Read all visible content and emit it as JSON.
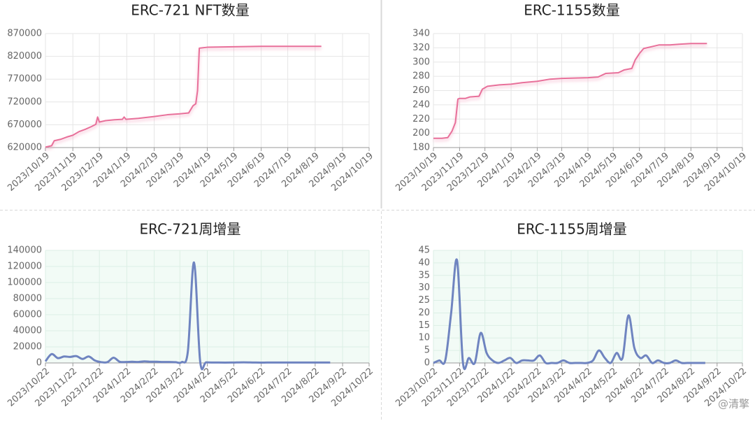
{
  "chart_data": [
    {
      "type": "line",
      "title": "ERC-721 NFT数量",
      "color": "#e8709a",
      "smooth": false,
      "grid": true,
      "shade": false,
      "x": [
        "2023/10/19",
        "2023/10/26",
        "2023/10/29",
        "2023/11/5",
        "2023/11/12",
        "2023/11/19",
        "2023/11/26",
        "2023/12/3",
        "2023/12/10",
        "2023/12/15",
        "2023/12/17",
        "2023/12/19",
        "2023/12/26",
        "2024/1/5",
        "2024/1/14",
        "2024/1/16",
        "2024/1/18",
        "2024/2/1",
        "2024/2/19",
        "2024/3/5",
        "2024/3/19",
        "2024/3/29",
        "2024/4/3",
        "2024/4/6",
        "2024/4/8",
        "2024/4/10",
        "2024/4/19",
        "2024/5/19",
        "2024/6/19",
        "2024/7/19",
        "2024/8/19",
        "2024/8/26"
      ],
      "values": [
        621000,
        624000,
        635000,
        638000,
        643000,
        647000,
        655000,
        660000,
        666000,
        671000,
        687000,
        676000,
        679000,
        681000,
        682000,
        687000,
        682000,
        684000,
        688000,
        692000,
        694000,
        696000,
        712000,
        716000,
        745000,
        838000,
        840000,
        841000,
        842000,
        842000,
        842000,
        842000
      ],
      "xlim": [
        "2023/10/19",
        "2024/10/19"
      ],
      "xticks": [
        "2023/10/19",
        "2023/11/19",
        "2023/12/19",
        "2024/1/19",
        "2024/2/19",
        "2024/3/19",
        "2024/4/19",
        "2024/5/19",
        "2024/6/19",
        "2024/7/19",
        "2024/8/19",
        "2024/9/19",
        "2024/10/19"
      ],
      "ylim": [
        620000,
        870000
      ],
      "yticks": [
        620000,
        670000,
        720000,
        770000,
        820000,
        870000
      ]
    },
    {
      "type": "line",
      "title": "ERC-1155数量",
      "color": "#e8709a",
      "smooth": false,
      "grid": true,
      "shade": false,
      "x": [
        "2023/10/19",
        "2023/10/29",
        "2023/11/5",
        "2023/11/10",
        "2023/11/14",
        "2023/11/17",
        "2023/11/19",
        "2023/11/26",
        "2023/12/1",
        "2023/12/12",
        "2023/12/16",
        "2023/12/22",
        "2024/1/5",
        "2024/1/19",
        "2024/2/1",
        "2024/2/19",
        "2024/3/5",
        "2024/3/19",
        "2024/4/19",
        "2024/5/1",
        "2024/5/10",
        "2024/5/25",
        "2024/6/1",
        "2024/6/10",
        "2024/6/14",
        "2024/6/19",
        "2024/6/24",
        "2024/7/5",
        "2024/7/12",
        "2024/7/25",
        "2024/8/5",
        "2024/8/19",
        "2024/9/7"
      ],
      "values": [
        193,
        193,
        194,
        203,
        215,
        248,
        249,
        249,
        251,
        252,
        262,
        266,
        268,
        269,
        271,
        273,
        276,
        277,
        278,
        279,
        284,
        285,
        289,
        291,
        303,
        312,
        319,
        322,
        324,
        324,
        325,
        326,
        326
      ],
      "xlim": [
        "2023/10/19",
        "2024/10/19"
      ],
      "xticks": [
        "2023/10/19",
        "2023/11/19",
        "2023/12/19",
        "2024/1/19",
        "2024/2/19",
        "2024/3/19",
        "2024/4/19",
        "2024/5/19",
        "2024/6/19",
        "2024/7/19",
        "2024/8/19",
        "2024/9/19",
        "2024/10/19"
      ],
      "ylim": [
        180,
        340
      ],
      "yticks": [
        180,
        200,
        220,
        240,
        260,
        280,
        300,
        320,
        340
      ]
    },
    {
      "type": "line",
      "title": "ERC-721周增量",
      "color": "#6f84c0",
      "smooth": true,
      "grid": true,
      "shade": true,
      "x": [
        "2023/10/22",
        "2023/10/29",
        "2023/11/5",
        "2023/11/12",
        "2023/11/19",
        "2023/11/26",
        "2023/12/3",
        "2023/12/10",
        "2023/12/17",
        "2023/12/24",
        "2023/12/31",
        "2024/1/7",
        "2024/1/14",
        "2024/1/21",
        "2024/1/28",
        "2024/2/4",
        "2024/2/11",
        "2024/2/18",
        "2024/2/25",
        "2024/3/3",
        "2024/3/10",
        "2024/3/17",
        "2024/3/24",
        "2024/3/31",
        "2024/4/7",
        "2024/4/14",
        "2024/4/21",
        "2024/5/5",
        "2024/5/19",
        "2024/6/2",
        "2024/6/16",
        "2024/6/30",
        "2024/7/14",
        "2024/7/28",
        "2024/8/11",
        "2024/8/25",
        "2024/9/8"
      ],
      "values": [
        2000,
        11000,
        6000,
        8000,
        7500,
        8500,
        5000,
        8000,
        3000,
        1000,
        1000,
        6500,
        1500,
        1200,
        1500,
        1200,
        2000,
        1500,
        1500,
        1200,
        1200,
        1000,
        1000,
        14000,
        125000,
        1500,
        800,
        500,
        500,
        800,
        500,
        500,
        500,
        500,
        500,
        500,
        500
      ],
      "xlim": [
        "2023/10/22",
        "2024/10/22"
      ],
      "xticks": [
        "2023/10/22",
        "2023/11/22",
        "2023/12/22",
        "2024/1/22",
        "2024/2/22",
        "2024/3/22",
        "2024/4/22",
        "2024/5/22",
        "2024/6/22",
        "2024/7/22",
        "2024/8/22",
        "2024/9/22",
        "2024/10/22"
      ],
      "ylim": [
        0,
        140000
      ],
      "yticks": [
        0,
        20000,
        40000,
        60000,
        80000,
        100000,
        120000,
        140000
      ]
    },
    {
      "type": "line",
      "title": "ERC-1155周增量",
      "color": "#6f84c0",
      "smooth": true,
      "grid": true,
      "shade": true,
      "x": [
        "2023/10/22",
        "2023/10/29",
        "2023/11/5",
        "2023/11/12",
        "2023/11/19",
        "2023/11/26",
        "2023/12/3",
        "2023/12/10",
        "2023/12/17",
        "2023/12/24",
        "2023/12/31",
        "2024/1/7",
        "2024/1/14",
        "2024/1/21",
        "2024/1/28",
        "2024/2/4",
        "2024/2/11",
        "2024/2/18",
        "2024/2/25",
        "2024/3/3",
        "2024/3/10",
        "2024/3/17",
        "2024/3/24",
        "2024/3/31",
        "2024/4/7",
        "2024/4/14",
        "2024/4/21",
        "2024/4/28",
        "2024/5/5",
        "2024/5/12",
        "2024/5/19",
        "2024/5/26",
        "2024/6/2",
        "2024/6/9",
        "2024/6/16",
        "2024/6/23",
        "2024/6/30",
        "2024/7/7",
        "2024/7/14",
        "2024/7/21",
        "2024/7/28",
        "2024/8/4",
        "2024/8/11",
        "2024/8/18",
        "2024/8/25",
        "2024/9/1",
        "2024/9/8"
      ],
      "values": [
        0,
        1,
        1,
        20,
        41,
        0,
        2,
        0,
        12,
        4,
        1,
        0,
        1,
        2,
        0,
        1,
        1,
        1,
        3,
        0,
        0,
        0,
        1,
        0,
        0,
        0,
        0,
        1,
        5,
        2,
        0,
        4,
        2,
        19,
        6,
        2,
        3,
        0,
        1,
        0,
        0,
        1,
        0,
        0,
        0,
        0,
        0
      ],
      "xlim": [
        "2023/10/22",
        "2024/10/22"
      ],
      "xticks": [
        "2023/10/22",
        "2023/11/22",
        "2023/12/22",
        "2024/1/22",
        "2024/2/22",
        "2024/3/22",
        "2024/4/22",
        "2024/5/22",
        "2024/6/22",
        "2024/7/22",
        "2024/8/22",
        "2024/9/22",
        "2024/10/22"
      ],
      "ylim": [
        0,
        45
      ],
      "yticks": [
        0,
        5,
        10,
        15,
        20,
        25,
        30,
        35,
        40,
        45
      ]
    }
  ],
  "watermark": "@清擎"
}
